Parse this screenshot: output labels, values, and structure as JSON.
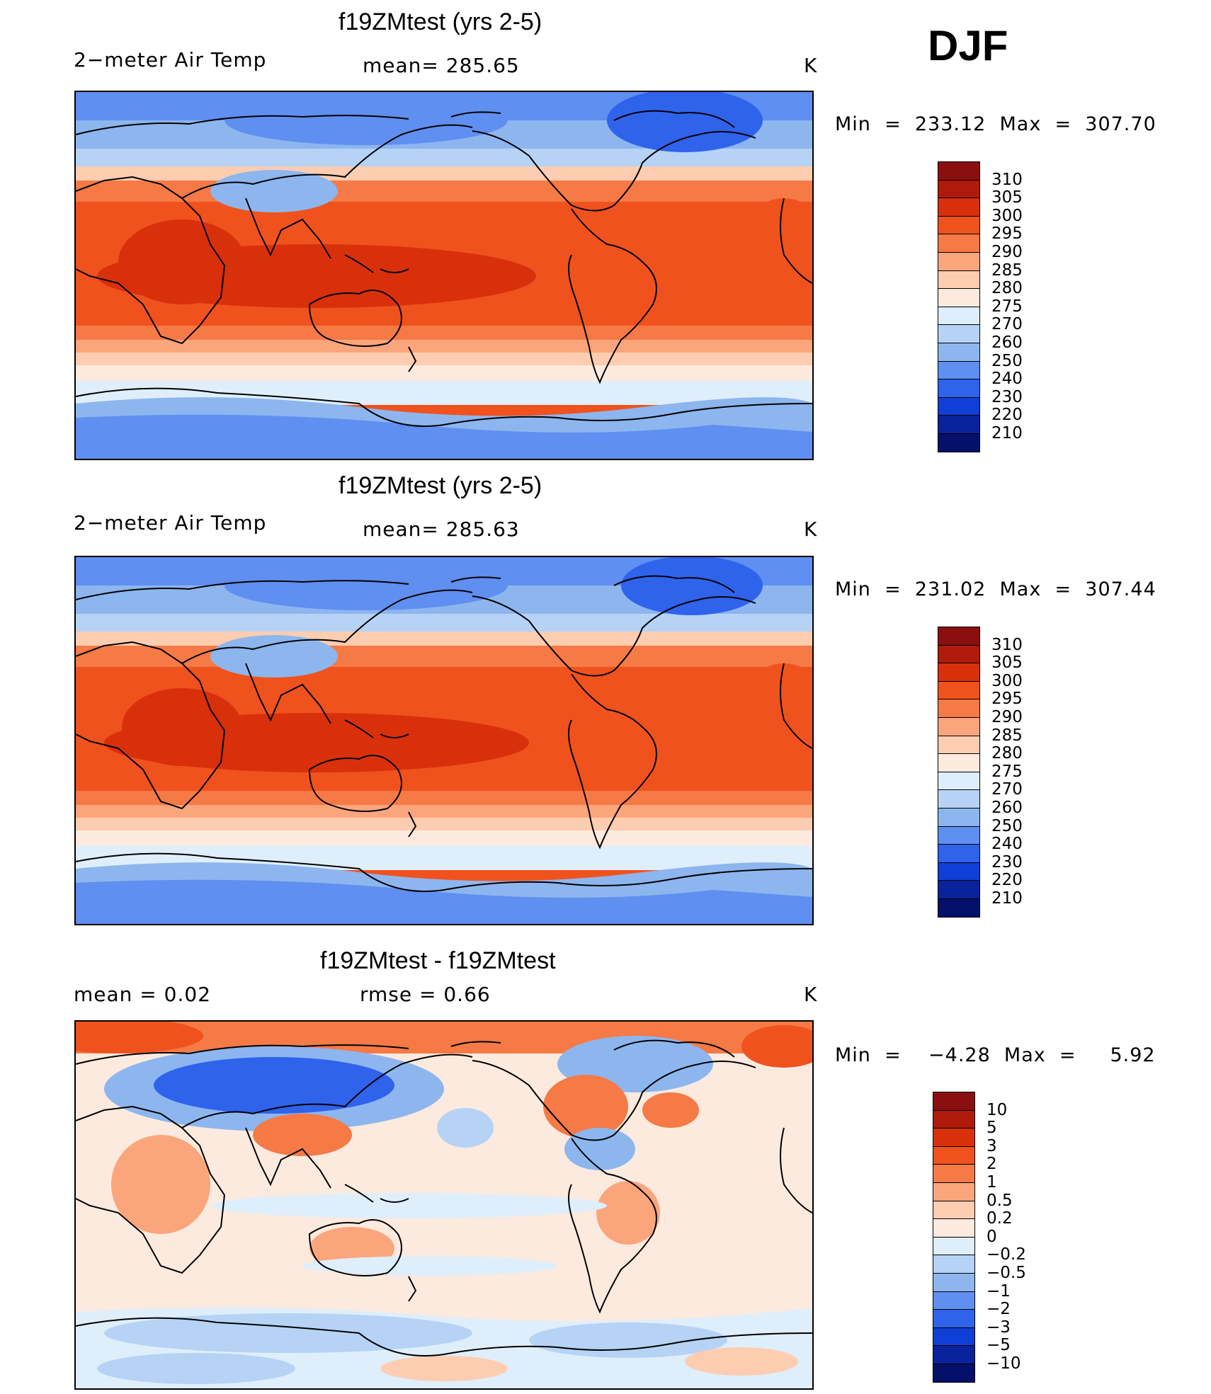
{
  "season": "DJF",
  "panels": [
    {
      "title": "f19ZMtest (yrs 2-5)",
      "left_label": "2−meter Air Temp",
      "center_label": "mean= 285.65",
      "units": "K",
      "minmax": "Min  =  233.12  Max  =  307.70",
      "colorbar": {
        "labels": [
          "310",
          "305",
          "300",
          "295",
          "290",
          "285",
          "280",
          "275",
          "270",
          "260",
          "250",
          "240",
          "230",
          "220",
          "210"
        ],
        "colors": [
          "#8b0f0f",
          "#b01a0a",
          "#d9300c",
          "#f0521e",
          "#f57a45",
          "#fba57d",
          "#fdcdb1",
          "#fdeade",
          "#dfeefb",
          "#b6d3f5",
          "#8db6ef",
          "#5f8ff0",
          "#2f63ec",
          "#0f3fd6",
          "#0a239c",
          "#04106a"
        ]
      },
      "map_type": "temperature"
    },
    {
      "title": "f19ZMtest (yrs 2-5)",
      "left_label": "2−meter Air Temp",
      "center_label": "mean= 285.63",
      "units": "K",
      "minmax": "Min  =  231.02  Max  =  307.44",
      "colorbar": {
        "labels": [
          "310",
          "305",
          "300",
          "295",
          "290",
          "285",
          "280",
          "275",
          "270",
          "260",
          "250",
          "240",
          "230",
          "220",
          "210"
        ],
        "colors": [
          "#8b0f0f",
          "#b01a0a",
          "#d9300c",
          "#f0521e",
          "#f57a45",
          "#fba57d",
          "#fdcdb1",
          "#fdeade",
          "#dfeefb",
          "#b6d3f5",
          "#8db6ef",
          "#5f8ff0",
          "#2f63ec",
          "#0f3fd6",
          "#0a239c",
          "#04106a"
        ]
      },
      "map_type": "temperature"
    },
    {
      "title": "f19ZMtest - f19ZMtest",
      "left_label": "mean =     0.02",
      "center_label": "rmse =     0.66",
      "units": "K",
      "minmax": "Min  =    −4.28  Max  =     5.92",
      "colorbar": {
        "labels": [
          "10",
          "5",
          "3",
          "2",
          "1",
          "0.5",
          "0.2",
          "0",
          "−0.2",
          "−0.5",
          "−1",
          "−2",
          "−3",
          "−5",
          "−10"
        ],
        "colors": [
          "#8b0f0f",
          "#b01a0a",
          "#d9300c",
          "#f0521e",
          "#f57a45",
          "#fba57d",
          "#fdcdb1",
          "#fdeade",
          "#dfeefb",
          "#b6d3f5",
          "#8db6ef",
          "#5f8ff0",
          "#2f63ec",
          "#0f3fd6",
          "#0a239c",
          "#04106a"
        ]
      },
      "map_type": "difference"
    }
  ]
}
